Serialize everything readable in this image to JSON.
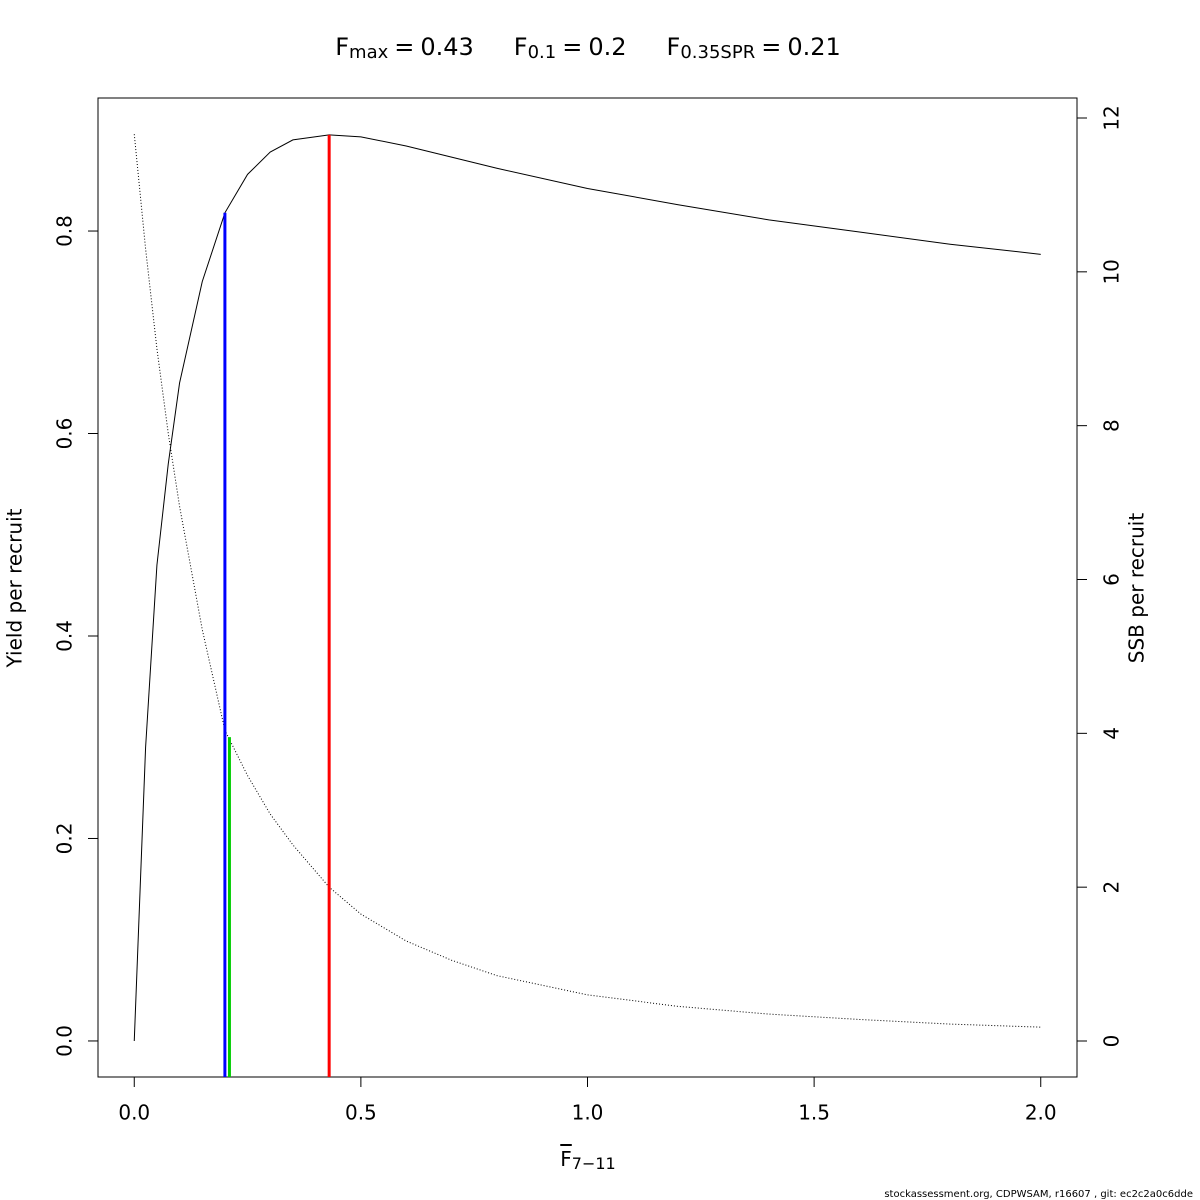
{
  "chart_data": {
    "type": "line",
    "equals": "=",
    "reference_lines": [
      {
        "symbol": "F",
        "subscript": "max",
        "x": 0.43,
        "x_label": "0.43",
        "y": 0.895,
        "axis": "y",
        "color": "#ff0000"
      },
      {
        "symbol": "F",
        "subscript": "0.1",
        "x": 0.2,
        "x_label": "0.2",
        "y": 0.818,
        "axis": "y",
        "color": "#0000ff"
      },
      {
        "symbol": "F",
        "subscript": "0.35SPR",
        "x": 0.21,
        "x_label": "0.21",
        "y": 3.95,
        "axis": "y2",
        "color": "#00cd00"
      }
    ],
    "xlabel": {
      "symbol": "F",
      "subscript": "7−11"
    },
    "ylabel": "Yield per recruit",
    "y2label": "SSB per recruit",
    "footer": "stockassessment.org, CDPWSAM, r16607 , git: ec2c2a0c6dde",
    "x": [
      0,
      0.025,
      0.05,
      0.075,
      0.1,
      0.15,
      0.2,
      0.25,
      0.3,
      0.35,
      0.43,
      0.5,
      0.6,
      0.7,
      0.8,
      1.0,
      1.2,
      1.4,
      1.6,
      1.8,
      2.0
    ],
    "series": [
      {
        "color": "#000000",
        "dash": "solid",
        "axis": "y",
        "values": [
          0,
          0.29,
          0.47,
          0.57,
          0.65,
          0.75,
          0.818,
          0.856,
          0.878,
          0.89,
          0.895,
          0.893,
          0.884,
          0.873,
          0.862,
          0.842,
          0.826,
          0.811,
          0.799,
          0.787,
          0.777
        ]
      },
      {
        "color": "#000000",
        "dash": "dotted",
        "axis": "y2",
        "values": [
          11.79,
          10.3,
          9.0,
          7.9,
          6.95,
          5.35,
          4.04,
          3.45,
          2.95,
          2.55,
          2.0,
          1.65,
          1.3,
          1.05,
          0.85,
          0.6,
          0.45,
          0.35,
          0.28,
          0.22,
          0.18
        ]
      }
    ],
    "xlim": [
      -0.08,
      2.08
    ],
    "ylim": [
      -0.0356,
      0.9314
    ],
    "y2lim": [
      -0.468,
      12.26
    ],
    "xticks": [
      {
        "value": 0,
        "label": "0.0"
      },
      {
        "value": 0.5,
        "label": "0.5"
      },
      {
        "value": 1,
        "label": "1.0"
      },
      {
        "value": 1.5,
        "label": "1.5"
      },
      {
        "value": 2,
        "label": "2.0"
      }
    ],
    "yticks": [
      {
        "value": 0,
        "label": "0.0"
      },
      {
        "value": 0.2,
        "label": "0.2"
      },
      {
        "value": 0.4,
        "label": "0.4"
      },
      {
        "value": 0.6,
        "label": "0.6"
      },
      {
        "value": 0.8,
        "label": "0.8"
      }
    ],
    "y2ticks": [
      0,
      2,
      4,
      6,
      8,
      10,
      12
    ],
    "grid": false
  }
}
